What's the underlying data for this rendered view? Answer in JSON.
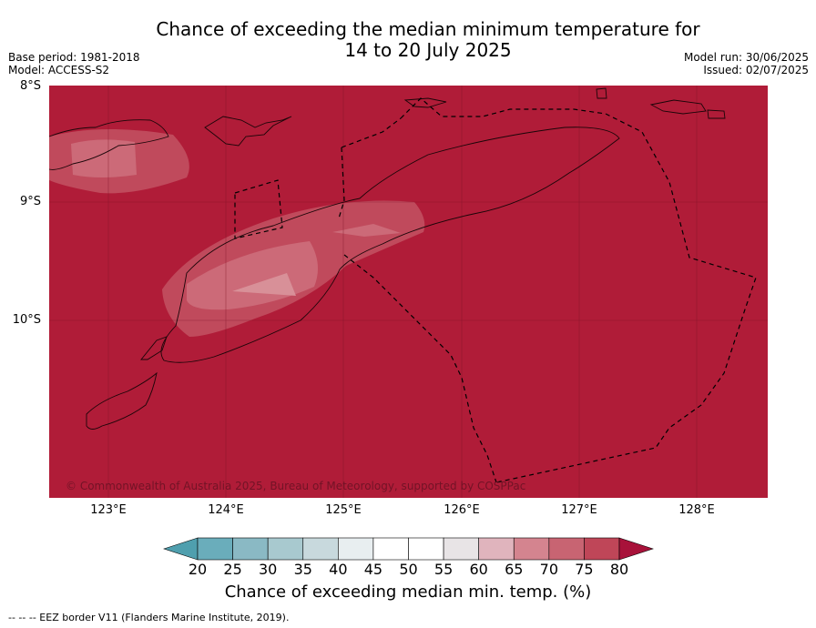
{
  "header": {
    "title_line1": "Chance of exceeding the median minimum temperature for",
    "title_line2": "14 to 20 July 2025",
    "base_period": "Base period: 1981-2018",
    "model": "Model: ACCESS-S2",
    "model_run": "Model run: 30/06/2025",
    "issued": "Issued: 02/07/2025"
  },
  "map": {
    "lat_labels": [
      "8°S",
      "9°S",
      "10°S"
    ],
    "lon_labels": [
      "123°E",
      "124°E",
      "125°E",
      "126°E",
      "127°E",
      "128°E"
    ],
    "copyright": "© Commonwealth of Australia 2025, Bureau of Meteorology, supported by COSPPac",
    "background_color": "#b01c38"
  },
  "colorbar": {
    "ticks": [
      "20",
      "25",
      "30",
      "35",
      "40",
      "45",
      "50",
      "55",
      "60",
      "65",
      "70",
      "75",
      "80"
    ],
    "colors": [
      "#4f9fae",
      "#6aadbb",
      "#8ab9c4",
      "#a8c9cf",
      "#c8d9dd",
      "#e8eef0",
      "#ffffff",
      "#ffffff",
      "#e8e4e6",
      "#e0b4bd",
      "#d4848f",
      "#c86472",
      "#bf4658",
      "#a8123a"
    ],
    "label": "Chance of exceeding median min. temp. (%)"
  },
  "footer": {
    "legend": "--  --  -- EEZ border V11 (Flanders Marine Institute, 2019)."
  }
}
